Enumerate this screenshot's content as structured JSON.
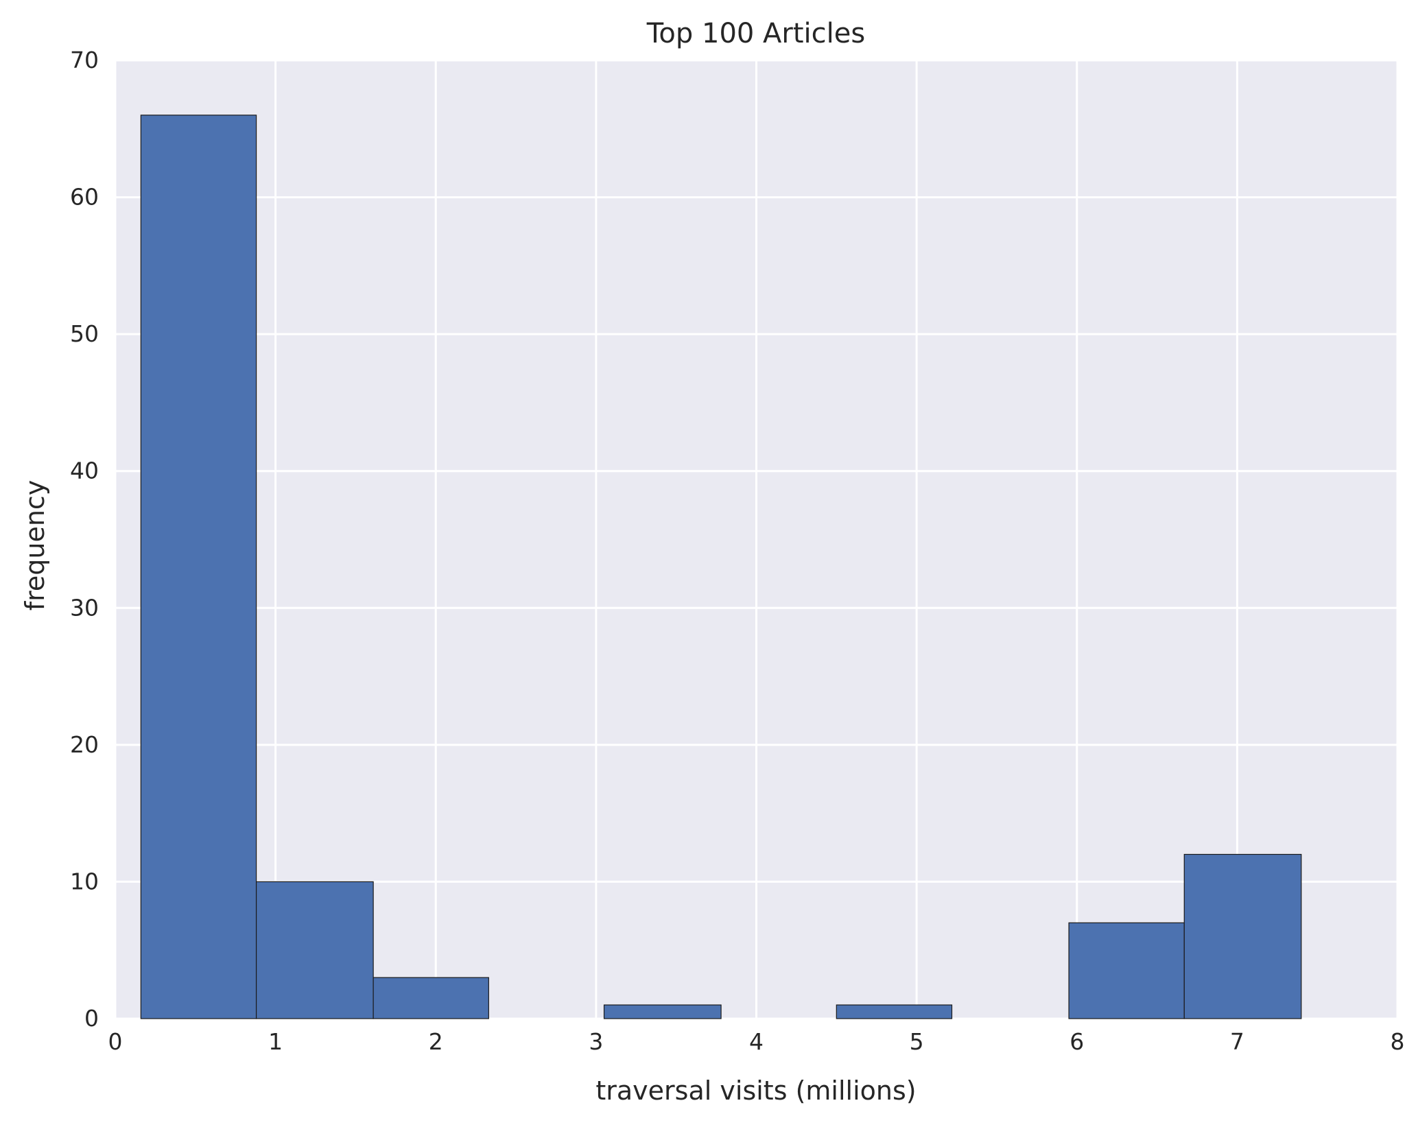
{
  "chart_data": {
    "type": "bar",
    "title": "Top 100 Articles",
    "xlabel": "traversal visits (millions)",
    "ylabel": "frequency",
    "xlim": [
      0,
      8
    ],
    "ylim": [
      0,
      70
    ],
    "xticks": [
      "0",
      "1",
      "2",
      "3",
      "4",
      "5",
      "6",
      "7",
      "8"
    ],
    "yticks": [
      "0",
      "10",
      "20",
      "30",
      "40",
      "50",
      "60",
      "70"
    ],
    "bins": [
      {
        "start": 0.16,
        "end": 0.88,
        "count": 66
      },
      {
        "start": 0.88,
        "end": 1.61,
        "count": 10
      },
      {
        "start": 1.61,
        "end": 2.33,
        "count": 3
      },
      {
        "start": 2.33,
        "end": 3.05,
        "count": 0
      },
      {
        "start": 3.05,
        "end": 3.78,
        "count": 1
      },
      {
        "start": 3.78,
        "end": 4.5,
        "count": 0
      },
      {
        "start": 4.5,
        "end": 5.22,
        "count": 1
      },
      {
        "start": 5.22,
        "end": 5.95,
        "count": 0
      },
      {
        "start": 5.95,
        "end": 6.67,
        "count": 7
      },
      {
        "start": 6.67,
        "end": 7.4,
        "count": 12
      }
    ],
    "grid": true,
    "bar_color": "#4c72b0",
    "background_color": "#eaeaf2"
  }
}
